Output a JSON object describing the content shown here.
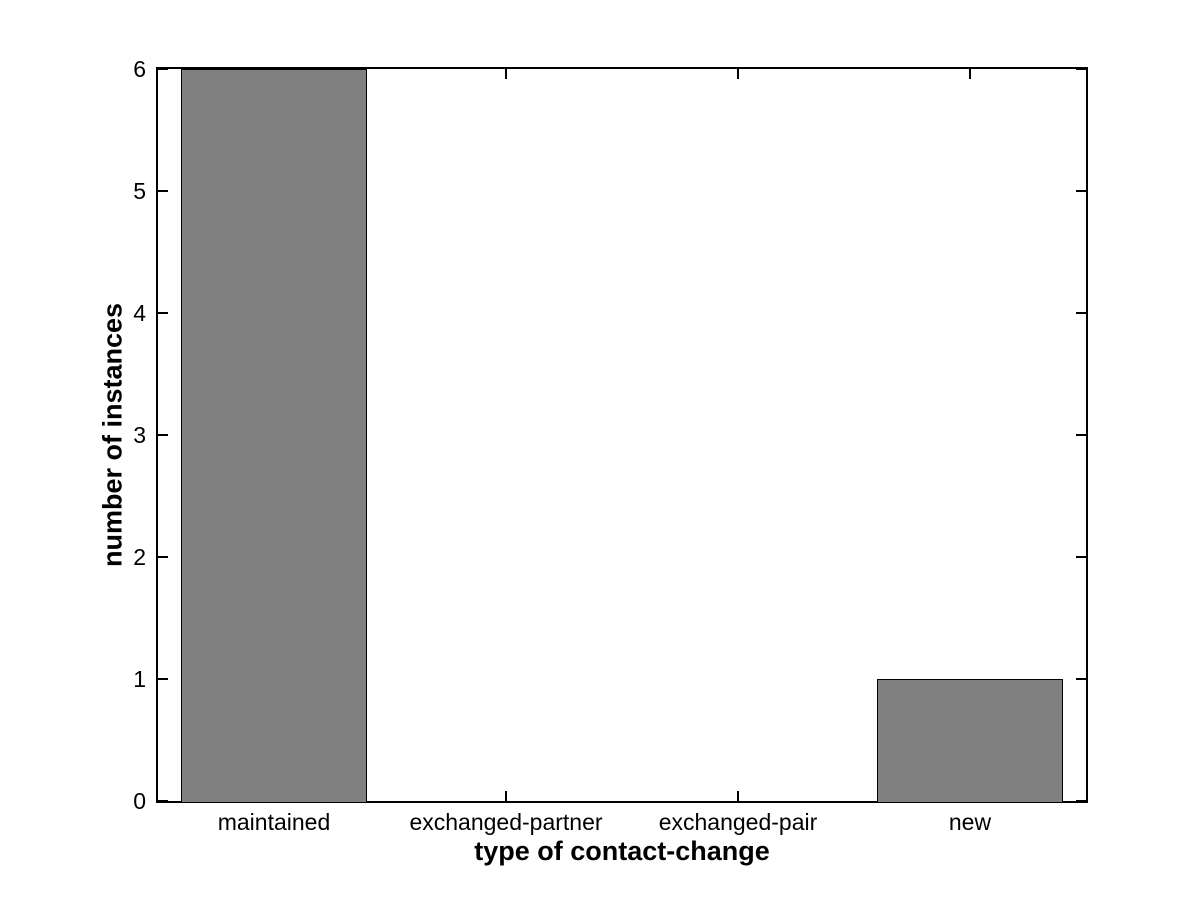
{
  "chart_data": {
    "type": "bar",
    "title": "",
    "categories": [
      "maintained",
      "exchanged-partner",
      "exchanged-pair",
      "new"
    ],
    "values": [
      6,
      0,
      0,
      1
    ],
    "xlabel": "type of contact-change",
    "ylabel": "number of instances",
    "ylim": [
      0,
      6
    ],
    "yticks": [
      0,
      1,
      2,
      3,
      4,
      5,
      6
    ],
    "bar_width_fraction": 0.8,
    "grid": false,
    "legend": "none",
    "colors": {
      "bar_fill": "#808080",
      "bar_edge": "#000000",
      "axis": "#000000",
      "background": "#ffffff",
      "text": "#000000"
    }
  }
}
